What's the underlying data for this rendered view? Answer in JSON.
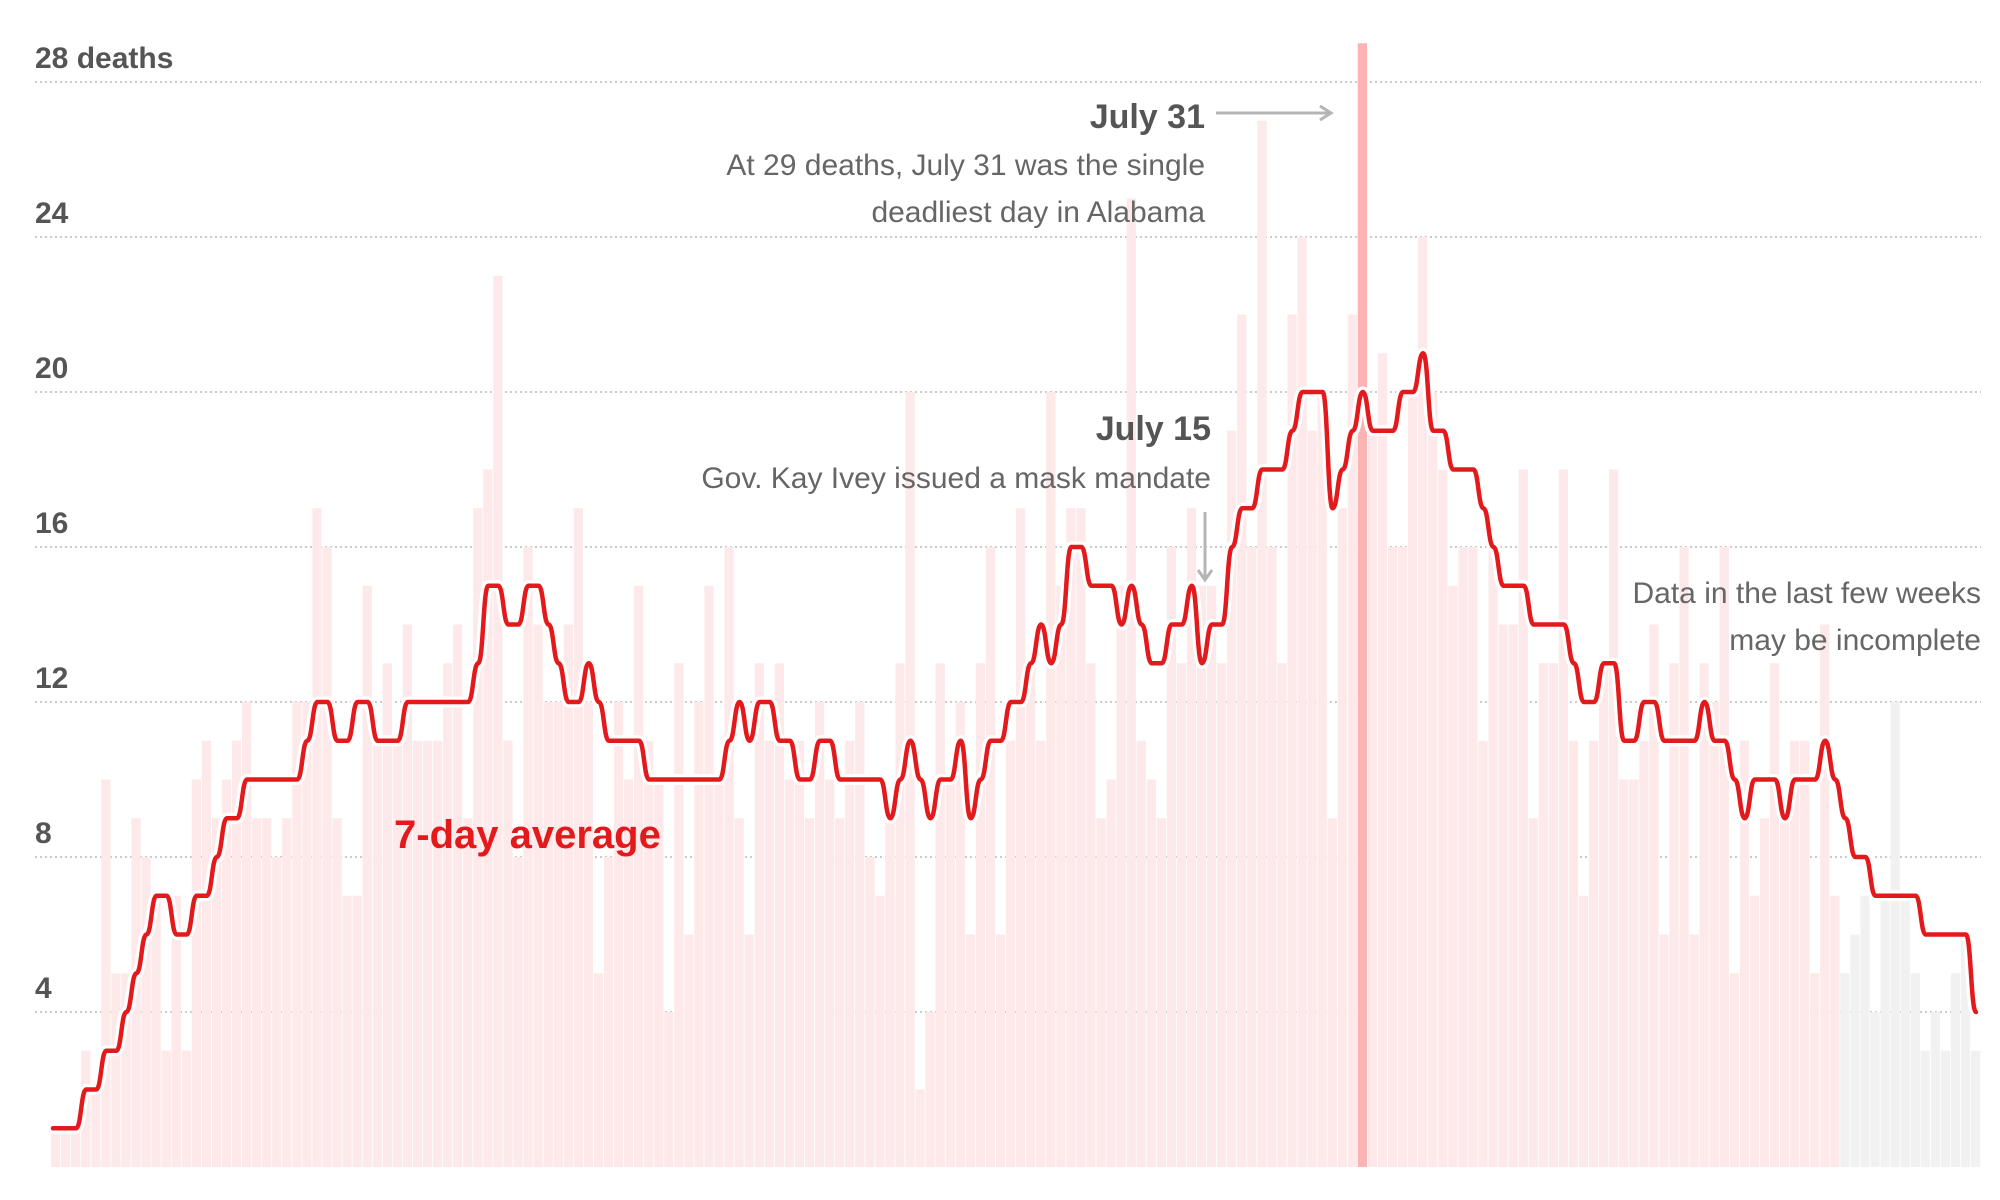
{
  "chart_data": {
    "type": "bar",
    "title": "",
    "xlabel": "",
    "ylabel": "",
    "ylim": [
      0,
      28
    ],
    "grid": true,
    "y_ticks": [
      {
        "value": 4,
        "label": "4"
      },
      {
        "value": 8,
        "label": "8"
      },
      {
        "value": 12,
        "label": "12"
      },
      {
        "value": 16,
        "label": "16"
      },
      {
        "value": 20,
        "label": "20"
      },
      {
        "value": 24,
        "label": "24"
      },
      {
        "value": 28,
        "label": "28 deaths"
      }
    ],
    "daily_deaths": [
      1,
      1,
      1,
      3,
      2,
      10,
      5,
      5,
      9,
      8,
      7,
      3,
      7,
      3,
      10,
      11,
      9,
      10,
      11,
      12,
      9,
      9,
      8,
      9,
      12,
      12,
      17,
      16,
      9,
      7,
      7,
      15,
      11,
      13,
      11,
      14,
      11,
      11,
      11,
      13,
      14,
      9,
      17,
      18,
      23,
      11,
      8,
      16,
      14,
      12,
      12,
      14,
      17,
      12,
      5,
      8,
      12,
      10,
      15,
      11,
      10,
      4,
      13,
      6,
      12,
      15,
      10,
      16,
      9,
      6,
      13,
      11,
      13,
      10,
      11,
      9,
      12,
      10,
      9,
      11,
      12,
      8,
      7,
      9,
      13,
      20,
      2,
      4,
      13,
      10,
      12,
      6,
      13,
      16,
      6,
      11,
      17,
      13,
      11,
      20,
      15,
      17,
      17,
      13,
      9,
      10,
      15,
      25,
      11,
      10,
      9,
      16,
      13,
      17,
      15,
      15,
      13,
      19,
      22,
      16,
      27,
      16,
      13,
      22,
      24,
      19,
      20,
      9,
      17,
      22,
      29,
      19,
      21,
      16,
      16,
      20,
      24,
      20,
      18,
      15,
      16,
      16,
      11,
      16,
      14,
      14,
      18,
      9,
      13,
      13,
      18,
      11,
      7,
      11,
      13,
      18,
      10,
      10,
      11,
      14,
      6,
      13,
      16,
      6,
      13,
      12,
      16,
      5,
      11,
      7,
      9,
      13,
      9,
      11,
      11,
      5,
      14,
      7,
      5,
      6,
      7,
      4,
      7,
      12,
      7,
      5,
      3,
      4,
      3,
      5,
      6,
      3
    ],
    "seven_day_average": {
      "name": "7-day average",
      "values": [
        1,
        1,
        1,
        2,
        2,
        3,
        3,
        4,
        5,
        6,
        7,
        7,
        6,
        6,
        7,
        7,
        8,
        9,
        9,
        10,
        10,
        10,
        10,
        10,
        10,
        11,
        12,
        12,
        11,
        11,
        12,
        12,
        11,
        11,
        11,
        12,
        12,
        12,
        12,
        12,
        12,
        12,
        13,
        15,
        15,
        14,
        14,
        15,
        15,
        14,
        13,
        12,
        12,
        13,
        12,
        11,
        11,
        11,
        11,
        10,
        10,
        10,
        10,
        10,
        10,
        10,
        10,
        11,
        12,
        11,
        12,
        12,
        11,
        11,
        10,
        10,
        11,
        11,
        10,
        10,
        10,
        10,
        10,
        9,
        10,
        11,
        10,
        9,
        10,
        10,
        11,
        9,
        10,
        11,
        11,
        12,
        12,
        13,
        14,
        13,
        14,
        16,
        16,
        15,
        15,
        15,
        14,
        15,
        14,
        13,
        13,
        14,
        14,
        15,
        13,
        14,
        14,
        16,
        17,
        17,
        18,
        18,
        18,
        19,
        20,
        20,
        20,
        17,
        18,
        19,
        20,
        19,
        19,
        19,
        20,
        20,
        21,
        19,
        19,
        18,
        18,
        18,
        17,
        16,
        15,
        15,
        15,
        14,
        14,
        14,
        14,
        13,
        12,
        12,
        13,
        13,
        11,
        11,
        12,
        12,
        11,
        11,
        11,
        11,
        12,
        11,
        11,
        10,
        9,
        10,
        10,
        10,
        9,
        10,
        10,
        10,
        11,
        10,
        9,
        8,
        8,
        7,
        7,
        7,
        7,
        7,
        6,
        6,
        6,
        6,
        6,
        4
      ]
    },
    "highlight_index": 130,
    "incomplete_from_index": 178,
    "colors": {
      "bar": "#fde9e9",
      "bar_incomplete": "#f1f1f1",
      "highlight": "#fbb3b3",
      "line": "#e3191c",
      "grid": "#aaaaaa",
      "text": "#555555",
      "annotation_arrow": "#b5b5b5"
    },
    "annotations": {
      "july31": {
        "title": "July 31",
        "lines": [
          "At 29 deaths, July 31 was the single",
          "deadliest day in Alabama"
        ],
        "arrow": "right"
      },
      "july15": {
        "title": "July 15",
        "lines": [
          "Gov. Kay Ivey issued a mask mandate"
        ],
        "arrow": "down"
      },
      "incomplete": {
        "lines": [
          "Data in the last few weeks",
          "may be incomplete"
        ]
      }
    }
  }
}
